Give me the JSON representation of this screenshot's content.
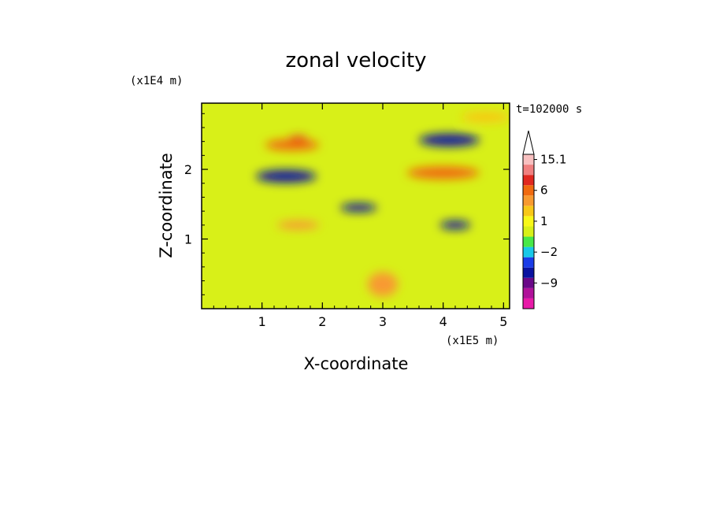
{
  "chart_data": {
    "type": "heatmap",
    "title": "zonal velocity",
    "xlabel": "X-coordinate",
    "ylabel": "Z-coordinate",
    "x_unit": "(x1E5 m)",
    "y_unit": "(x1E4 m)",
    "time_label": "t=102000 s",
    "xlim": [
      0,
      5.1
    ],
    "ylim": [
      0,
      2.95
    ],
    "x_ticks": [
      "1",
      "2",
      "3",
      "4",
      "5"
    ],
    "x_tick_values": [
      1,
      2,
      3,
      4,
      5
    ],
    "y_ticks": [
      "1",
      "2"
    ],
    "y_tick_values": [
      1,
      2
    ],
    "colorbar": {
      "labels": [
        "15.1",
        "6",
        "1",
        "−2",
        "−9"
      ],
      "label_levels": [
        15.1,
        6,
        1,
        -2,
        -9
      ],
      "levels": [
        -15,
        -12,
        -9,
        -6,
        -4,
        -2,
        -1,
        0,
        1,
        2,
        4,
        6,
        9,
        12,
        15.1
      ],
      "colors": [
        "#e81aa8",
        "#b0129a",
        "#6a0888",
        "#0a12a0",
        "#1a3ce8",
        "#18c8e8",
        "#48e848",
        "#d8f018",
        "#f8f818",
        "#f8c818",
        "#f89a30",
        "#f06a10",
        "#e02820",
        "#f08080",
        "#f8c0c0"
      ]
    },
    "features": [
      {
        "x": 1.5,
        "z": 2.35,
        "w": 0.9,
        "h": 0.16,
        "value": 6
      },
      {
        "x": 1.6,
        "z": 2.45,
        "w": 0.3,
        "h": 0.06,
        "value": 10
      },
      {
        "x": 1.4,
        "z": 1.9,
        "w": 1.0,
        "h": 0.18,
        "value": -6
      },
      {
        "x": 4.1,
        "z": 2.42,
        "w": 1.0,
        "h": 0.18,
        "value": -6
      },
      {
        "x": 4.0,
        "z": 1.95,
        "w": 1.2,
        "h": 0.18,
        "value": 6
      },
      {
        "x": 2.6,
        "z": 1.45,
        "w": 0.6,
        "h": 0.12,
        "value": -5
      },
      {
        "x": 4.2,
        "z": 1.2,
        "w": 0.5,
        "h": 0.12,
        "value": -6
      },
      {
        "x": 1.6,
        "z": 1.2,
        "w": 0.7,
        "h": 0.12,
        "value": 4
      },
      {
        "x": 3.0,
        "z": 0.35,
        "w": 0.5,
        "h": 0.35,
        "value": 5
      },
      {
        "x": 4.7,
        "z": 2.75,
        "w": 0.8,
        "h": 0.15,
        "value": 2
      }
    ]
  }
}
